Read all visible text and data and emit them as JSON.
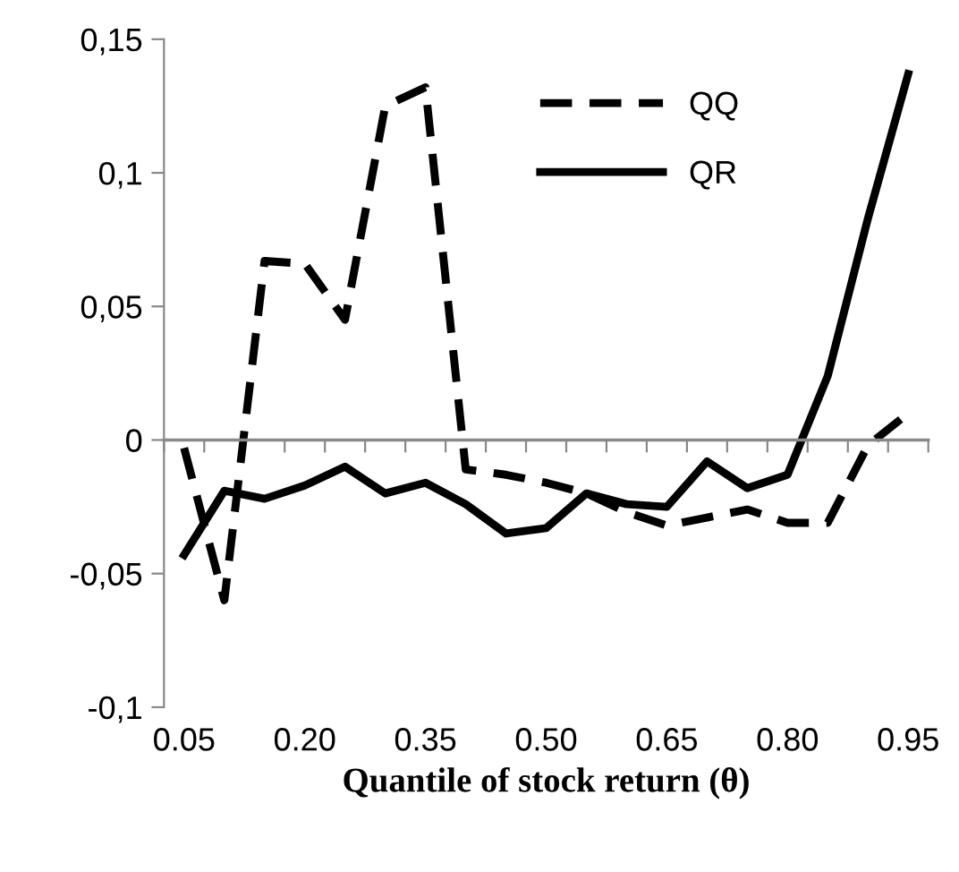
{
  "chart_data": {
    "type": "line",
    "xlabel": "Quantile of stock return (θ)",
    "categories": [
      "0.05",
      null,
      null,
      "0.20",
      null,
      null,
      "0.35",
      null,
      null,
      "0.50",
      null,
      null,
      "0.65",
      null,
      null,
      "0.80",
      null,
      null,
      "0.95"
    ],
    "series": [
      {
        "name": "QQ",
        "color": "#000000",
        "line_style": "dashed",
        "values": [
          -0.003,
          -0.06,
          0.067,
          0.066,
          0.045,
          0.125,
          0.132,
          -0.011,
          -0.013,
          -0.016,
          -0.02,
          -0.027,
          -0.032,
          -0.029,
          -0.026,
          -0.031,
          -0.031,
          -0.002,
          0.01
        ]
      },
      {
        "name": "QR",
        "color": "#000000",
        "line_style": "solid",
        "values": [
          -0.043,
          -0.019,
          -0.022,
          -0.017,
          -0.01,
          -0.02,
          -0.016,
          -0.024,
          -0.035,
          -0.033,
          -0.02,
          -0.024,
          -0.025,
          -0.008,
          -0.018,
          -0.013,
          0.024,
          0.083,
          0.137
        ]
      }
    ],
    "ylim": [
      -0.1,
      0.15
    ],
    "yticks": [
      {
        "value": -0.1,
        "label": "-0,1"
      },
      {
        "value": -0.05,
        "label": "-0,05"
      },
      0,
      {
        "value": 0.05,
        "label": "0,05"
      },
      {
        "value": 0.1,
        "label": "0,1"
      },
      {
        "value": 0.15,
        "label": "0,15"
      }
    ],
    "legend": "top right",
    "marker": "none"
  }
}
